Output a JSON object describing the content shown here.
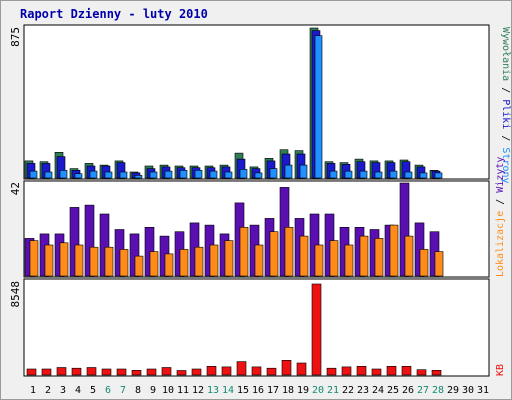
{
  "title": "Raport Dzienny -  luty 2010",
  "colors": {
    "title": "#0000aa",
    "background": "#f0f0f0",
    "panel": "#ffffff",
    "wywolania": "#2e7d57",
    "pliki": "#1a1acc",
    "strony": "#1e90ff",
    "wizyty": "#5a0fb0",
    "lokalizacje": "#ff8c1a",
    "kb": "#ee1111",
    "weekend_label": "#138a73",
    "weekday_label": "#000000"
  },
  "legend": {
    "wywolania": "Wywołania",
    "separator1": " / ",
    "pliki": "Pliki",
    "separator2": " / ",
    "strony": "Strony",
    "wizyty": "Wizyty",
    "separator3": " / ",
    "lokalizacje": "Lokalizacje",
    "kb": "KB"
  },
  "chart_data": [
    {
      "type": "bar",
      "panel": "hits",
      "y_axis_label": "875",
      "ylim": [
        0,
        875
      ],
      "categories": [
        "1",
        "2",
        "3",
        "4",
        "5",
        "6",
        "7",
        "8",
        "9",
        "10",
        "11",
        "12",
        "13",
        "14",
        "15",
        "16",
        "17",
        "18",
        "19",
        "20",
        "21",
        "22",
        "23",
        "24",
        "25",
        "26",
        "27",
        "28",
        "29",
        "30",
        "31"
      ],
      "series": [
        {
          "name": "Wywołania",
          "values": [
            100,
            95,
            150,
            55,
            85,
            75,
            100,
            35,
            70,
            75,
            70,
            70,
            70,
            75,
            145,
            65,
            115,
            165,
            160,
            875,
            95,
            90,
            110,
            100,
            100,
            105,
            75,
            45,
            0,
            0,
            0
          ]
        },
        {
          "name": "Pliki",
          "values": [
            85,
            85,
            125,
            45,
            70,
            70,
            90,
            30,
            55,
            65,
            60,
            60,
            60,
            65,
            110,
            55,
            100,
            140,
            140,
            860,
            85,
            80,
            95,
            90,
            90,
            95,
            65,
            40,
            0,
            0,
            0
          ]
        },
        {
          "name": "Strony",
          "values": [
            40,
            35,
            45,
            25,
            40,
            35,
            35,
            15,
            35,
            40,
            45,
            45,
            40,
            35,
            50,
            30,
            55,
            75,
            75,
            830,
            40,
            40,
            40,
            35,
            40,
            35,
            30,
            30,
            0,
            0,
            0
          ]
        }
      ]
    },
    {
      "type": "bar",
      "panel": "visits",
      "y_axis_label": "42",
      "ylim": [
        0,
        42
      ],
      "categories": [
        "1",
        "2",
        "3",
        "4",
        "5",
        "6",
        "7",
        "8",
        "9",
        "10",
        "11",
        "12",
        "13",
        "14",
        "15",
        "16",
        "17",
        "18",
        "19",
        "20",
        "21",
        "22",
        "23",
        "24",
        "25",
        "26",
        "27",
        "28",
        "29",
        "30",
        "31"
      ],
      "series": [
        {
          "name": "Wizyty",
          "values": [
            17,
            19,
            19,
            31,
            32,
            28,
            21,
            19,
            22,
            18,
            20,
            24,
            23,
            19,
            33,
            23,
            26,
            40,
            26,
            28,
            28,
            22,
            22,
            21,
            23,
            42,
            24,
            20,
            0,
            0,
            0
          ]
        },
        {
          "name": "Lokalizacje",
          "values": [
            16,
            14,
            15,
            14,
            13,
            13,
            12,
            9,
            11,
            10,
            12,
            13,
            14,
            16,
            22,
            14,
            20,
            22,
            18,
            14,
            16,
            14,
            18,
            17,
            23,
            18,
            12,
            11,
            0,
            0,
            0
          ]
        }
      ]
    },
    {
      "type": "bar",
      "panel": "kb",
      "y_axis_label": "8548",
      "ylim": [
        0,
        8548
      ],
      "categories": [
        "1",
        "2",
        "3",
        "4",
        "5",
        "6",
        "7",
        "8",
        "9",
        "10",
        "11",
        "12",
        "13",
        "14",
        "15",
        "16",
        "17",
        "18",
        "19",
        "20",
        "21",
        "22",
        "23",
        "24",
        "25",
        "26",
        "27",
        "28",
        "29",
        "30",
        "31"
      ],
      "series": [
        {
          "name": "KB",
          "values": [
            560,
            560,
            700,
            640,
            700,
            560,
            560,
            440,
            560,
            700,
            420,
            560,
            820,
            760,
            1260,
            760,
            640,
            1380,
            1130,
            8548,
            640,
            760,
            820,
            560,
            820,
            820,
            500,
            440,
            0,
            0,
            0
          ]
        }
      ]
    }
  ],
  "x_labels": [
    {
      "label": "1",
      "weekend": false
    },
    {
      "label": "2",
      "weekend": false
    },
    {
      "label": "3",
      "weekend": false
    },
    {
      "label": "4",
      "weekend": false
    },
    {
      "label": "5",
      "weekend": false
    },
    {
      "label": "6",
      "weekend": true
    },
    {
      "label": "7",
      "weekend": true
    },
    {
      "label": "8",
      "weekend": false
    },
    {
      "label": "9",
      "weekend": false
    },
    {
      "label": "10",
      "weekend": false
    },
    {
      "label": "11",
      "weekend": false
    },
    {
      "label": "12",
      "weekend": false
    },
    {
      "label": "13",
      "weekend": true
    },
    {
      "label": "14",
      "weekend": true
    },
    {
      "label": "15",
      "weekend": false
    },
    {
      "label": "16",
      "weekend": false
    },
    {
      "label": "17",
      "weekend": false
    },
    {
      "label": "18",
      "weekend": false
    },
    {
      "label": "19",
      "weekend": false
    },
    {
      "label": "20",
      "weekend": true
    },
    {
      "label": "21",
      "weekend": true
    },
    {
      "label": "22",
      "weekend": false
    },
    {
      "label": "23",
      "weekend": false
    },
    {
      "label": "24",
      "weekend": false
    },
    {
      "label": "25",
      "weekend": false
    },
    {
      "label": "26",
      "weekend": false
    },
    {
      "label": "27",
      "weekend": true
    },
    {
      "label": "28",
      "weekend": true
    },
    {
      "label": "29",
      "weekend": false
    },
    {
      "label": "30",
      "weekend": false
    },
    {
      "label": "31",
      "weekend": false
    }
  ]
}
